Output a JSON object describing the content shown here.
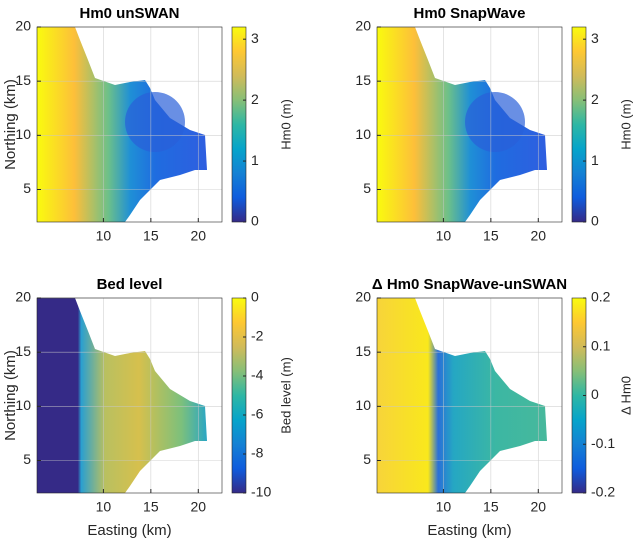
{
  "chart_data": [
    {
      "type": "heatmap",
      "title": "Hm0 unSWAN",
      "ylabel": "Northing (km)",
      "xlim": [
        3,
        22.5
      ],
      "ylim": [
        2,
        20
      ],
      "xticks": [
        10,
        15,
        20
      ],
      "yticks": [
        5,
        10,
        15,
        20
      ],
      "grid": true,
      "colorbar": {
        "label": "Hm0 (m)",
        "lim": [
          0,
          3.2
        ],
        "ticks": [
          0,
          1,
          2,
          3
        ],
        "colors": [
          "#352a87",
          "#0f5cdd",
          "#1481d4",
          "#06a4ca",
          "#2eb7a4",
          "#87bf77",
          "#d1bb59",
          "#fec832",
          "#f9fb0e"
        ]
      }
    },
    {
      "type": "heatmap",
      "title": "Hm0 SnapWave",
      "xlim": [
        3,
        22.5
      ],
      "ylim": [
        2,
        20
      ],
      "xticks": [
        10,
        15,
        20
      ],
      "yticks": [
        5,
        10,
        15,
        20
      ],
      "grid": true,
      "colorbar": {
        "label": "Hm0 (m)",
        "lim": [
          0,
          3.2
        ],
        "ticks": [
          0,
          1,
          2,
          3
        ],
        "colors": [
          "#352a87",
          "#0f5cdd",
          "#1481d4",
          "#06a4ca",
          "#2eb7a4",
          "#87bf77",
          "#d1bb59",
          "#fec832",
          "#f9fb0e"
        ]
      }
    },
    {
      "type": "heatmap",
      "title": "Bed level",
      "xlabel": "Easting (km)",
      "ylabel": "Northing (km)",
      "xlim": [
        3,
        22.5
      ],
      "ylim": [
        2,
        20
      ],
      "xticks": [
        10,
        15,
        20
      ],
      "yticks": [
        5,
        10,
        15,
        20
      ],
      "grid": true,
      "colorbar": {
        "label": "Bed level (m)",
        "lim": [
          -10,
          0
        ],
        "ticks": [
          -10,
          -8,
          -6,
          -4,
          -2,
          0
        ],
        "colors": [
          "#352a87",
          "#0f5cdd",
          "#1481d4",
          "#06a4ca",
          "#2eb7a4",
          "#87bf77",
          "#d1bb59",
          "#fec832",
          "#f9fb0e"
        ]
      }
    },
    {
      "type": "heatmap",
      "title": "Δ Hm0 SnapWave-unSWAN",
      "xlabel": "Easting (km)",
      "xlim": [
        3,
        22.5
      ],
      "ylim": [
        2,
        20
      ],
      "xticks": [
        10,
        15,
        20
      ],
      "yticks": [
        5,
        10,
        15,
        20
      ],
      "grid": true,
      "colorbar": {
        "label": "Δ Hm0",
        "lim": [
          -0.2,
          0.2
        ],
        "ticks": [
          -0.2,
          -0.1,
          0,
          0.1,
          0.2
        ],
        "colors": [
          "#352a87",
          "#0f5cdd",
          "#1481d4",
          "#06a4ca",
          "#2eb7a4",
          "#87bf77",
          "#d1bb59",
          "#fec832",
          "#f9fb0e"
        ]
      }
    }
  ]
}
